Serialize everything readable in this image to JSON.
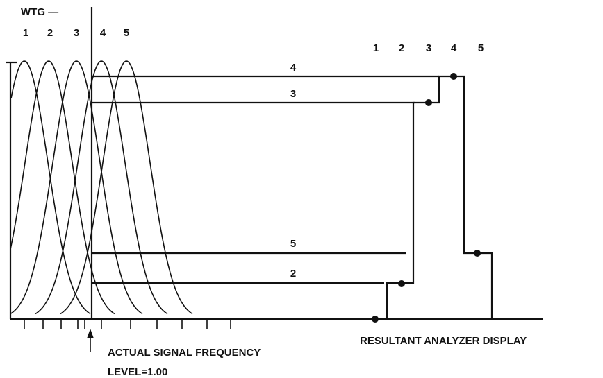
{
  "wtg_label": "WTG —",
  "filter_labels": [
    "1",
    "2",
    "3",
    "4",
    "5"
  ],
  "line_labels": [
    "4",
    "3",
    "5",
    "2"
  ],
  "display_labels": [
    "1",
    "2",
    "3",
    "4",
    "5"
  ],
  "signal_label": "ACTUAL SIGNAL FREQUENCY",
  "level_label": "LEVEL=1.00",
  "display_title": "RESULTANT ANALYZER DISPLAY"
}
